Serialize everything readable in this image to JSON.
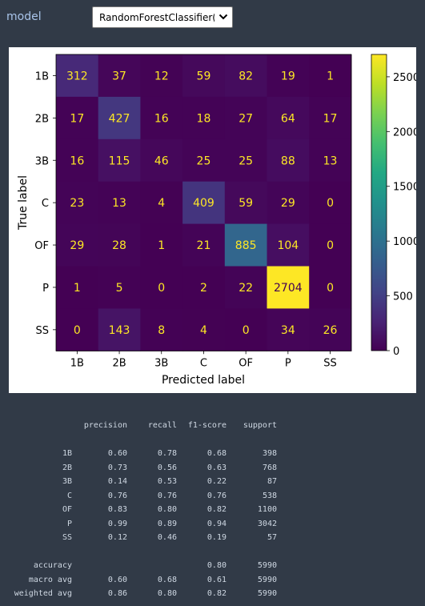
{
  "header": {
    "model_label": "model",
    "model_select_value": "RandomForestClassifier(r",
    "model_select_icon": "chevron-down-icon"
  },
  "chart_data": {
    "type": "heatmap",
    "title": "",
    "xlabel": "Predicted label",
    "ylabel": "True label",
    "x_categories": [
      "1B",
      "2B",
      "3B",
      "C",
      "OF",
      "P",
      "SS"
    ],
    "y_categories": [
      "1B",
      "2B",
      "3B",
      "C",
      "OF",
      "P",
      "SS"
    ],
    "values": [
      [
        312,
        37,
        12,
        59,
        82,
        19,
        1
      ],
      [
        17,
        427,
        16,
        18,
        27,
        64,
        17
      ],
      [
        16,
        115,
        46,
        25,
        25,
        88,
        13
      ],
      [
        23,
        13,
        4,
        409,
        59,
        29,
        0
      ],
      [
        29,
        28,
        1,
        21,
        885,
        104,
        0
      ],
      [
        1,
        5,
        0,
        2,
        22,
        2704,
        0
      ],
      [
        0,
        143,
        8,
        4,
        0,
        34,
        26
      ]
    ],
    "colormap": "viridis",
    "vmin": 0,
    "vmax": 2704,
    "colorbar_ticks": [
      0,
      500,
      1000,
      1500,
      2000,
      2500
    ],
    "text_color_low": "#fde725",
    "text_color_high": "#440154"
  },
  "report": {
    "headers": {
      "precision": "precision",
      "recall": "recall",
      "f1": "f1-score",
      "support": "support"
    },
    "classes": [
      {
        "label": "1B",
        "precision": "0.60",
        "recall": "0.78",
        "f1": "0.68",
        "support": "398"
      },
      {
        "label": "2B",
        "precision": "0.73",
        "recall": "0.56",
        "f1": "0.63",
        "support": "768"
      },
      {
        "label": "3B",
        "precision": "0.14",
        "recall": "0.53",
        "f1": "0.22",
        "support": "87"
      },
      {
        "label": "C",
        "precision": "0.76",
        "recall": "0.76",
        "f1": "0.76",
        "support": "538"
      },
      {
        "label": "OF",
        "precision": "0.83",
        "recall": "0.80",
        "f1": "0.82",
        "support": "1100"
      },
      {
        "label": "P",
        "precision": "0.99",
        "recall": "0.89",
        "f1": "0.94",
        "support": "3042"
      },
      {
        "label": "SS",
        "precision": "0.12",
        "recall": "0.46",
        "f1": "0.19",
        "support": "57"
      }
    ],
    "summary": [
      {
        "label": "accuracy",
        "precision": "",
        "recall": "",
        "f1": "0.80",
        "support": "5990"
      },
      {
        "label": "macro avg",
        "precision": "0.60",
        "recall": "0.68",
        "f1": "0.61",
        "support": "5990"
      },
      {
        "label": "weighted avg",
        "precision": "0.86",
        "recall": "0.80",
        "f1": "0.82",
        "support": "5990"
      }
    ]
  }
}
